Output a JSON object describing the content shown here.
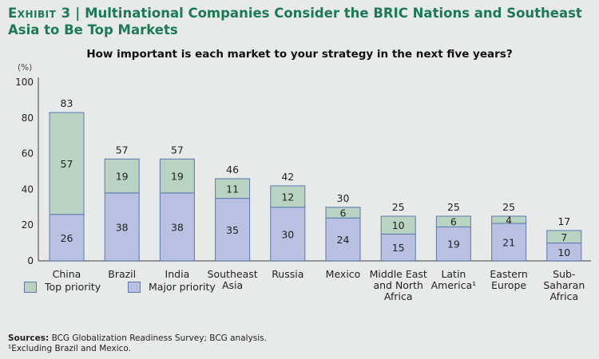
{
  "exhibit_label": "Exhibit 3",
  "title": "Multinational Companies Consider the BRIC Nations and Southeast Asia to Be Top Markets",
  "colors": {
    "top": "#b9d3c2",
    "major": "#b9c0e1",
    "border": "#5b78b0",
    "title": "#1b7a55"
  },
  "chart_data": {
    "type": "bar",
    "stacked": true,
    "title": "How important is each market to your strategy in the next five years?",
    "ylabel": "(%)",
    "ylim": [
      0,
      100
    ],
    "yticks": [
      "0",
      "20",
      "40",
      "60",
      "80",
      "100"
    ],
    "categories": [
      [
        "China"
      ],
      [
        "Brazil"
      ],
      [
        "India"
      ],
      [
        "Southeast",
        "Asia"
      ],
      [
        "Russia"
      ],
      [
        "Mexico"
      ],
      [
        "Middle East",
        "and North",
        "Africa"
      ],
      [
        "Latin",
        "America¹"
      ],
      [
        "Eastern",
        "Europe"
      ],
      [
        "Sub-",
        "Saharan",
        "Africa"
      ]
    ],
    "series": [
      {
        "name": "Major priority",
        "values": [
          26,
          38,
          38,
          35,
          30,
          24,
          15,
          19,
          21,
          10
        ]
      },
      {
        "name": "Top priority",
        "values": [
          57,
          19,
          19,
          11,
          12,
          6,
          10,
          6,
          4,
          7
        ]
      }
    ],
    "totals": [
      83,
      57,
      57,
      46,
      42,
      30,
      25,
      25,
      25,
      17
    ],
    "legend_position": "bottom-left"
  },
  "legend": {
    "top": "Top priority",
    "major": "Major priority"
  },
  "notes": {
    "sources_label": "Sources:",
    "sources": " BCG Globalization Readiness Survey; BCG analysis.",
    "footnote": "¹Excluding Brazil and Mexico."
  }
}
